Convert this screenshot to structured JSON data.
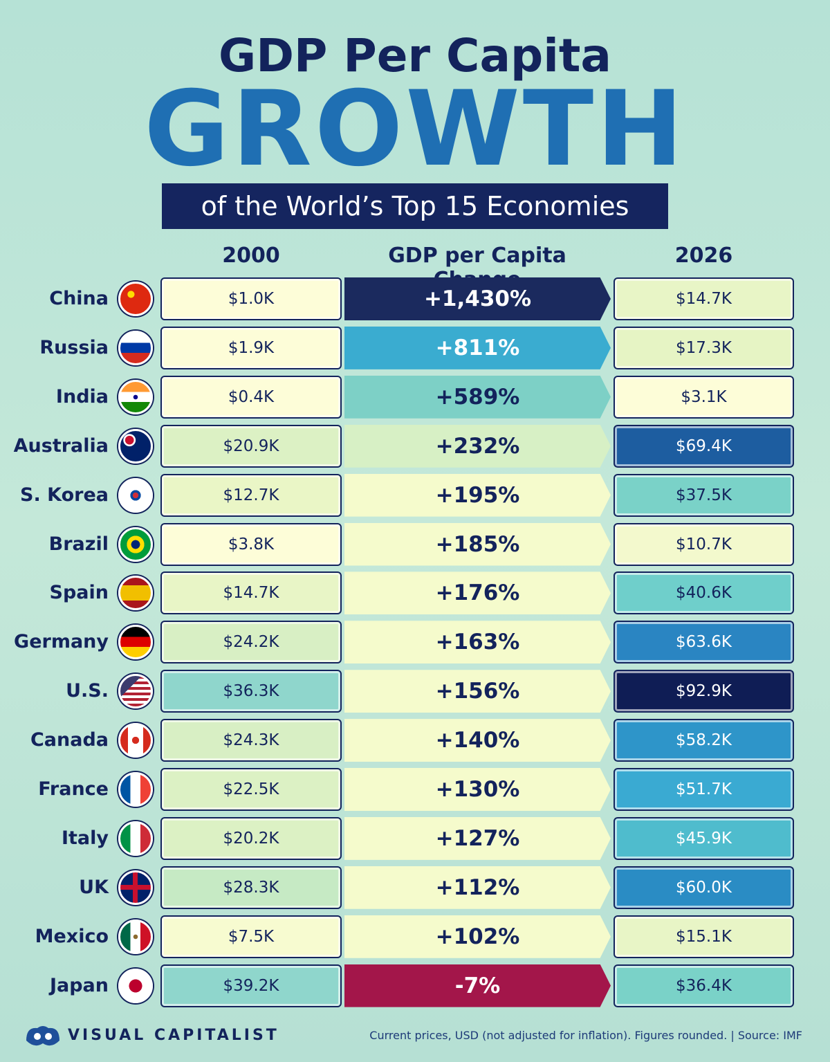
{
  "header": {
    "title": "GDP Per Capita",
    "headline": "GROWTH",
    "subtitle": "of the World’s Top 15 Economies"
  },
  "table": {
    "columns": [
      "2000",
      "GDP per Capita Change",
      "2026"
    ],
    "rows": [
      {
        "country": "China",
        "v2000": "$1.0K",
        "change": "+1,430%",
        "v2026": "$14.7K",
        "color2000": "#fdfdd8",
        "colorChange": "#1b2a5e",
        "color2026": "#e8f5c6"
      },
      {
        "country": "Russia",
        "v2000": "$1.9K",
        "change": "+811%",
        "v2026": "$17.3K",
        "color2000": "#fdfdd8",
        "colorChange": "#3aacd0",
        "color2026": "#e6f4c4"
      },
      {
        "country": "India",
        "v2000": "$0.4K",
        "change": "+589%",
        "v2026": "$3.1K",
        "color2000": "#fdfdd8",
        "colorChange": "#7dd0c6",
        "color2026": "#fdfdd8"
      },
      {
        "country": "Australia",
        "v2000": "$20.9K",
        "change": "+232%",
        "v2026": "$69.4K",
        "color2000": "#dcf1c4",
        "colorChange": "#d7f0c5",
        "color2026": "#1d5da0"
      },
      {
        "country": "S. Korea",
        "v2000": "$12.7K",
        "change": "+195%",
        "v2026": "$37.5K",
        "color2000": "#eaf6c6",
        "colorChange": "#f5fbcc",
        "color2026": "#7ad2c8"
      },
      {
        "country": "Brazil",
        "v2000": "$3.8K",
        "change": "+185%",
        "v2026": "$10.7K",
        "color2000": "#fdfdd8",
        "colorChange": "#f5fbcc",
        "color2026": "#f3f9cd"
      },
      {
        "country": "Spain",
        "v2000": "$14.7K",
        "change": "+176%",
        "v2026": "$40.6K",
        "color2000": "#e8f5c6",
        "colorChange": "#f5fbcc",
        "color2026": "#6fcfcb"
      },
      {
        "country": "Germany",
        "v2000": "$24.2K",
        "change": "+163%",
        "v2026": "$63.6K",
        "color2000": "#d8efc4",
        "colorChange": "#f5fbcc",
        "color2026": "#2a85c2"
      },
      {
        "country": "U.S.",
        "v2000": "$36.3K",
        "change": "+156%",
        "v2026": "$92.9K",
        "color2000": "#8fd6cc",
        "colorChange": "#f5fbcc",
        "color2026": "#0f1d55"
      },
      {
        "country": "Canada",
        "v2000": "$24.3K",
        "change": "+140%",
        "v2026": "$58.2K",
        "color2000": "#d8efc4",
        "colorChange": "#f5fbcc",
        "color2026": "#2e95c9"
      },
      {
        "country": "France",
        "v2000": "$22.5K",
        "change": "+130%",
        "v2026": "$51.7K",
        "color2000": "#dcf1c4",
        "colorChange": "#f5fbcc",
        "color2026": "#3aaad2"
      },
      {
        "country": "Italy",
        "v2000": "$20.2K",
        "change": "+127%",
        "v2026": "$45.9K",
        "color2000": "#dcf1c4",
        "colorChange": "#f5fbcc",
        "color2026": "#4fbccd"
      },
      {
        "country": "UK",
        "v2000": "$28.3K",
        "change": "+112%",
        "v2026": "$60.0K",
        "color2000": "#c6eac4",
        "colorChange": "#f5fbcc",
        "color2026": "#2a8cc4"
      },
      {
        "country": "Mexico",
        "v2000": "$7.5K",
        "change": "+102%",
        "v2026": "$15.1K",
        "color2000": "#f7fbd0",
        "colorChange": "#f5fbcc",
        "color2026": "#e8f5c6"
      },
      {
        "country": "Japan",
        "v2000": "$39.2K",
        "change": "-7%",
        "v2026": "$36.4K",
        "color2000": "#8fd6cc",
        "colorChange": "#a3164a",
        "color2026": "#7ad2c8"
      }
    ]
  },
  "footer": {
    "brand": "VISUAL CAPITALIST",
    "note": "Current prices, USD (not adjusted for inflation). Figures rounded.",
    "source": "Source: IMF"
  }
}
